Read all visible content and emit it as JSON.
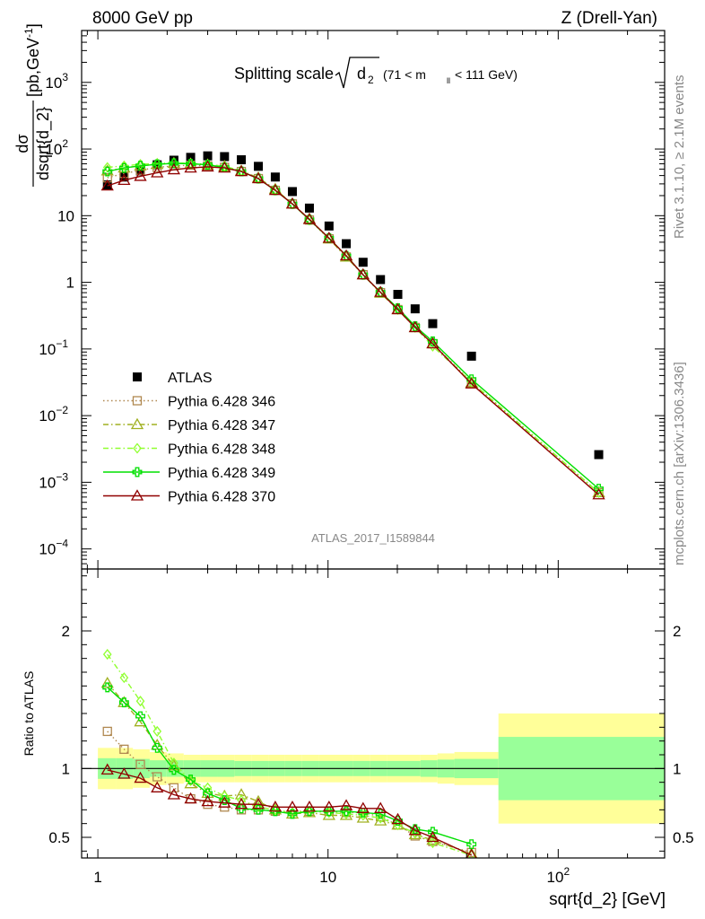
{
  "header": {
    "left": "8000 GeV pp",
    "right": "Z (Drell-Yan)"
  },
  "side_labels": {
    "rivet": "Rivet 3.1.10, ≥ 2.1M events",
    "mcplots": "mcplots.cern.ch [arXiv:1306.3436]"
  },
  "chart_data": [
    {
      "type": "scatter",
      "panel": "main",
      "title": {
        "main": "Splitting scale",
        "sqrt_var": "d",
        "sqrt_sub": "2",
        "range_pre": "(71 < m",
        "range_sub": "ll",
        "range_post": " < 111 GeV)"
      },
      "watermark": "ATLAS_2017_I1589844",
      "ylabel": {
        "num": "dσ",
        "den": "dsqrt{d_2}",
        "units": "[pb,GeV",
        "units_sup": "-1",
        "units_end": "]"
      },
      "xscale": "log",
      "yscale": "log",
      "xlim": [
        0.85,
        290
      ],
      "ylim": [
        5e-05,
        6000
      ],
      "yticks_major": [
        {
          "v": 0.0001,
          "base": "10",
          "exp": "−4"
        },
        {
          "v": 0.001,
          "base": "10",
          "exp": "−3"
        },
        {
          "v": 0.01,
          "base": "10",
          "exp": "−2"
        },
        {
          "v": 0.1,
          "base": "10",
          "exp": "−1"
        },
        {
          "v": 1,
          "base": "1",
          "exp": ""
        },
        {
          "v": 10,
          "base": "10",
          "exp": ""
        },
        {
          "v": 100,
          "base": "10",
          "exp": "2"
        },
        {
          "v": 1000,
          "base": "10",
          "exp": "3"
        }
      ],
      "legend_position": "middle-left",
      "x": [
        1.1,
        1.3,
        1.53,
        1.81,
        2.14,
        2.53,
        3.0,
        3.55,
        4.2,
        4.98,
        5.9,
        7.0,
        8.3,
        10.1,
        12.0,
        14.2,
        16.9,
        20.1,
        23.9,
        28.5,
        42.0,
        150.0
      ],
      "series": [
        {
          "name": "ATLAS",
          "color": "#000000",
          "marker": "square",
          "line": "none",
          "values": [
            29,
            38,
            47,
            58,
            68,
            75,
            79,
            77,
            69,
            55,
            38,
            23,
            13,
            7,
            3.8,
            2.0,
            1.1,
            0.66,
            0.4,
            0.24,
            0.078,
            0.0026
          ]
        },
        {
          "name": "Pythia 6.428 346",
          "color": "#b08850",
          "marker": "open-square",
          "line": "dotted",
          "values": [
            37,
            43,
            48,
            53,
            56,
            57,
            56,
            53,
            46,
            36,
            24,
            15,
            8.6,
            4.5,
            2.4,
            1.3,
            0.7,
            0.39,
            0.21,
            0.12,
            0.032,
            0.0007
          ]
        },
        {
          "name": "Pythia 6.428 347",
          "color": "#a0b020",
          "marker": "open-triangle",
          "line": "dashdot",
          "values": [
            47,
            52,
            56,
            59,
            61,
            60,
            58,
            55,
            47,
            37,
            25,
            15,
            8.9,
            4.5,
            2.4,
            1.3,
            0.69,
            0.39,
            0.21,
            0.12,
            0.031,
            0.0007
          ]
        },
        {
          "name": "Pythia 6.428 348",
          "color": "#90ff30",
          "marker": "open-diamond",
          "line": "dashdot",
          "values": [
            53,
            56,
            59,
            61,
            62,
            61,
            59,
            55,
            47,
            36,
            24,
            15,
            8.6,
            4.6,
            2.5,
            1.3,
            0.7,
            0.39,
            0.21,
            0.11,
            0.032,
            0.0007
          ]
        },
        {
          "name": "Pythia 6.428 349",
          "color": "#00e000",
          "marker": "open-cross",
          "line": "solid",
          "values": [
            46,
            52,
            56,
            59,
            61,
            60,
            58,
            53,
            46,
            36,
            24,
            15,
            8.7,
            4.6,
            2.5,
            1.3,
            0.71,
            0.41,
            0.22,
            0.13,
            0.035,
            0.0008
          ]
        },
        {
          "name": "Pythia 6.428 370",
          "color": "#900000",
          "marker": "open-triangle",
          "line": "solid",
          "values": [
            28,
            34,
            39,
            44,
            49,
            52,
            54,
            52,
            46,
            36,
            24,
            15,
            8.8,
            4.6,
            2.5,
            1.3,
            0.71,
            0.39,
            0.21,
            0.12,
            0.03,
            0.00065
          ]
        }
      ]
    },
    {
      "type": "line",
      "panel": "ratio",
      "ylabel": "Ratio to ATLAS",
      "xlabel": "sqrt{d_2} [GeV]",
      "xscale": "log",
      "xlim": [
        0.85,
        290
      ],
      "ylim": [
        0.35,
        2.45
      ],
      "yticks": [
        {
          "v": 0.5,
          "label": "0.5"
        },
        {
          "v": 1,
          "label": "1"
        },
        {
          "v": 2,
          "label": "2"
        }
      ],
      "xticks": [
        {
          "v": 1,
          "base": "1",
          "exp": ""
        },
        {
          "v": 10,
          "base": "10",
          "exp": ""
        },
        {
          "v": 100,
          "base": "10",
          "exp": "2"
        }
      ],
      "bin_edges": [
        1.0,
        1.2,
        1.42,
        1.68,
        1.99,
        2.36,
        2.79,
        3.31,
        3.92,
        4.64,
        5.5,
        6.51,
        7.71,
        9.13,
        10.82,
        12.82,
        15.18,
        17.98,
        21.3,
        25.23,
        29.89,
        35.4,
        55.0,
        290.0
      ],
      "band_stat_halfwidth": [
        0.075,
        0.075,
        0.07,
        0.06,
        0.06,
        0.06,
        0.06,
        0.06,
        0.055,
        0.055,
        0.055,
        0.055,
        0.055,
        0.055,
        0.055,
        0.055,
        0.055,
        0.055,
        0.055,
        0.06,
        0.065,
        0.07,
        0.23
      ],
      "band_total_halfwidth": [
        0.15,
        0.15,
        0.14,
        0.12,
        0.11,
        0.1,
        0.1,
        0.1,
        0.1,
        0.1,
        0.1,
        0.1,
        0.1,
        0.1,
        0.1,
        0.1,
        0.1,
        0.1,
        0.1,
        0.1,
        0.11,
        0.12,
        0.4
      ],
      "x": [
        1.1,
        1.3,
        1.53,
        1.81,
        2.14,
        2.53,
        3.0,
        3.55,
        4.2,
        4.98,
        5.9,
        7.0,
        8.3,
        10.1,
        12.0,
        14.2,
        16.9,
        20.1,
        23.9,
        28.5,
        42.0
      ],
      "series": [
        {
          "name": "Pythia 6.428 346",
          "values": [
            1.27,
            1.14,
            1.03,
            0.94,
            0.86,
            0.78,
            0.74,
            0.72,
            0.7,
            0.7,
            0.69,
            0.69,
            0.69,
            0.69,
            0.68,
            0.68,
            0.65,
            0.59,
            0.51,
            0.47,
            0.39
          ]
        },
        {
          "name": "Pythia 6.428 347",
          "values": [
            1.62,
            1.48,
            1.34,
            1.17,
            1.02,
            0.89,
            0.82,
            0.8,
            0.81,
            0.76,
            0.7,
            0.67,
            0.68,
            0.66,
            0.66,
            0.64,
            0.62,
            0.59,
            0.52,
            0.48,
            0.38
          ]
        },
        {
          "name": "Pythia 6.428 348",
          "values": [
            1.83,
            1.66,
            1.49,
            1.27,
            1.04,
            0.91,
            0.86,
            0.8,
            0.77,
            0.72,
            0.7,
            0.68,
            0.69,
            0.68,
            0.67,
            0.66,
            0.64,
            0.59,
            0.53,
            0.46,
            0.37
          ]
        },
        {
          "name": "Pythia 6.428 349",
          "values": [
            1.59,
            1.48,
            1.38,
            1.15,
            0.99,
            0.92,
            0.82,
            0.77,
            0.71,
            0.7,
            0.69,
            0.67,
            0.69,
            0.69,
            0.69,
            0.68,
            0.67,
            0.62,
            0.56,
            0.54,
            0.45
          ]
        },
        {
          "name": "Pythia 6.428 370",
          "values": [
            0.99,
            0.96,
            0.93,
            0.86,
            0.81,
            0.78,
            0.76,
            0.75,
            0.74,
            0.74,
            0.72,
            0.72,
            0.72,
            0.72,
            0.73,
            0.71,
            0.71,
            0.63,
            0.55,
            0.5,
            0.37
          ]
        }
      ]
    }
  ]
}
